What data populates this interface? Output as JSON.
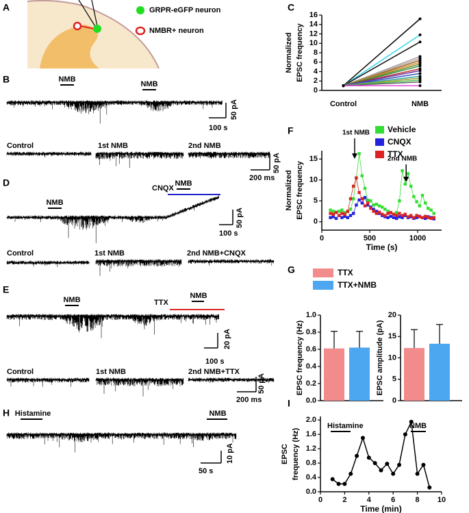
{
  "panels": {
    "A": {
      "label": "A",
      "items": [
        "GRPR-eGFP neuron",
        "NMBR+ neuron"
      ]
    },
    "B": {
      "label": "B",
      "events": [
        "NMB",
        "NMB"
      ],
      "scale": [
        "100 s",
        "50 pA"
      ],
      "sweeps": [
        "Control",
        "1st NMB",
        "2nd NMB"
      ],
      "sweep_scale": [
        "200 ms",
        "50 pA"
      ]
    },
    "D": {
      "label": "D",
      "events": [
        "NMB",
        "NMB",
        "CNQX"
      ],
      "scale": [
        "100 s",
        "50 pA"
      ],
      "sweeps": [
        "Control",
        "1st NMB",
        "2nd NMB+",
        "CNQX"
      ]
    },
    "E": {
      "label": "E",
      "events": [
        "NMB",
        "NMB",
        "TTX"
      ],
      "scale": [
        "100 s",
        "20 pA"
      ],
      "sweeps": [
        "Control",
        "1st NMB",
        "2nd NMB+",
        "TTX"
      ],
      "sweep_scale": [
        "200 ms",
        "50 pA"
      ]
    },
    "H": {
      "label": "H",
      "events": [
        "Histamine",
        "NMB"
      ],
      "scale": [
        "50 s",
        "10 pA"
      ]
    }
  },
  "chart_data": [
    {
      "panel": "C",
      "type": "line",
      "categories": [
        "Control",
        "NMB"
      ],
      "ylabel": [
        "Normalized",
        "EPSC frequency"
      ],
      "ylim": [
        0,
        16
      ],
      "yticks": [
        0,
        2,
        4,
        6,
        8,
        10,
        12,
        14,
        16
      ],
      "marker": "circle",
      "marker_color": "#000000",
      "series": [
        {
          "color": "#000000",
          "values": [
            1,
            15.2
          ]
        },
        {
          "color": "#33d6e8",
          "values": [
            1,
            11.8
          ]
        },
        {
          "color": "#111111",
          "values": [
            1,
            10.3
          ]
        },
        {
          "color": "#a0a0a0",
          "values": [
            1,
            7.2
          ]
        },
        {
          "color": "#c8a0a0",
          "values": [
            1,
            6.8
          ]
        },
        {
          "color": "#8c6c2c",
          "values": [
            1,
            6.4
          ]
        },
        {
          "color": "#e08a2a",
          "values": [
            1,
            6.0
          ]
        },
        {
          "color": "#6e8c2a",
          "values": [
            1,
            5.6
          ]
        },
        {
          "color": "#2a8c3c",
          "values": [
            1,
            5.2
          ]
        },
        {
          "color": "#c03030",
          "values": [
            1,
            4.6
          ]
        },
        {
          "color": "#7030a0",
          "values": [
            1,
            4.2
          ]
        },
        {
          "color": "#3050c0",
          "values": [
            1,
            3.6
          ]
        },
        {
          "color": "#30a0a0",
          "values": [
            1,
            3.0
          ]
        },
        {
          "color": "#a0a030",
          "values": [
            1,
            2.6
          ]
        },
        {
          "color": "#50c050",
          "values": [
            1,
            2.2
          ]
        },
        {
          "color": "#606060",
          "values": [
            1,
            1.8
          ]
        },
        {
          "color": "#e040e0",
          "values": [
            1,
            1.0
          ]
        }
      ]
    },
    {
      "panel": "F",
      "type": "line",
      "ylabel": [
        "Normalized",
        "EPSC frequency"
      ],
      "xlabel": "Time (s)",
      "annotations": [
        "1st NMB",
        "2nd NMB"
      ],
      "xlim": [
        0,
        1250
      ],
      "xticks": [
        0,
        500,
        1000
      ],
      "ylim": [
        -2,
        17
      ],
      "yticks": [
        0,
        5,
        10,
        15
      ],
      "marker": "square",
      "x": [
        90,
        120,
        150,
        180,
        210,
        240,
        270,
        300,
        330,
        360,
        390,
        420,
        450,
        480,
        510,
        540,
        570,
        600,
        630,
        660,
        690,
        720,
        750,
        780,
        810,
        840,
        870,
        900,
        930,
        960,
        990,
        1020,
        1050,
        1080,
        1110,
        1140,
        1170
      ],
      "series": [
        {
          "name": "Vehicle",
          "color": "#33dd33",
          "values": [
            2.8,
            2.5,
            2.3,
            2.5,
            2.8,
            2.2,
            2.4,
            3.0,
            5.5,
            10.5,
            16.3,
            11,
            8,
            5.2,
            5.0,
            4.0,
            4.2,
            3.8,
            3.5,
            3.0,
            2.5,
            2.2,
            1.8,
            2.2,
            5.0,
            12.2,
            9.0,
            11.5,
            8.5,
            6.0,
            4.8,
            3.8,
            6.3,
            4.5,
            3.2,
            2.8,
            2.0
          ]
        },
        {
          "name": "CNQX",
          "color": "#2222dd",
          "values": [
            1.0,
            1.2,
            0.8,
            1.5,
            1.0,
            1.3,
            1.0,
            1.5,
            2.0,
            4.0,
            5.2,
            4.5,
            5.8,
            4.0,
            3.5,
            3.0,
            2.5,
            2.0,
            1.5,
            1.2,
            1.0,
            1.3,
            1.0,
            0.8,
            1.2,
            1.0,
            1.5,
            1.0,
            1.2,
            0.8,
            1.0,
            1.3,
            1.0,
            0.8,
            1.2,
            1.0,
            0.7
          ]
        },
        {
          "name": "TTX",
          "color": "#dd2222",
          "values": [
            2.0,
            1.8,
            2.2,
            1.5,
            2.0,
            1.8,
            2.5,
            5.5,
            8.5,
            10.5,
            7.0,
            5.5,
            3.8,
            4.5,
            3.2,
            2.5,
            2.0,
            2.3,
            1.8,
            1.5,
            2.0,
            2.2,
            1.8,
            1.5,
            2.0,
            1.5,
            1.8,
            1.2,
            1.5,
            1.0,
            1.5,
            1.2,
            1.0,
            1.3,
            1.0,
            0.8,
            1.0
          ]
        }
      ]
    },
    {
      "panel": "G",
      "type": "bar",
      "ylabel": "EPSC frequency (Hz)",
      "ylim": [
        0,
        1
      ],
      "yticks": [
        {
          "value": 0,
          "label": "0.0"
        },
        0.2,
        0.4,
        0.6,
        0.8,
        {
          "value": 1,
          "label": "1.0"
        }
      ],
      "series": [
        {
          "name": "TTX",
          "color": "#f28b8b",
          "values": [
            0.61
          ],
          "errors": [
            0.2
          ]
        },
        {
          "name": "TTX+NMB",
          "color": "#4da6f0",
          "values": [
            0.62
          ],
          "errors": [
            0.19
          ]
        }
      ]
    },
    {
      "type": "bar",
      "ylabel": "EPSC amplitude (pA)",
      "ylim": [
        0,
        20
      ],
      "yticks": [
        0,
        5,
        10,
        15,
        20
      ],
      "series": [
        {
          "color": "#f28b8b",
          "values": [
            12.3
          ],
          "errors": [
            4.3
          ]
        },
        {
          "color": "#4da6f0",
          "values": [
            13.3
          ],
          "errors": [
            4.5
          ]
        }
      ]
    },
    {
      "panel": "I",
      "type": "line",
      "ylabel": [
        "EPSC",
        "frequency (Hz)"
      ],
      "xlabel": "Time (min)",
      "annotations": [
        "Histamine",
        "NMB"
      ],
      "marker": "circle",
      "marker_color": "#000000",
      "xlim": [
        0,
        10
      ],
      "xticks": [
        0,
        2,
        4,
        6,
        8,
        10
      ],
      "ylim": [
        0,
        2.1
      ],
      "yticks": [
        {
          "value": 0,
          "label": "0.0"
        },
        0.4,
        0.8,
        1.2,
        1.6,
        {
          "value": 2,
          "label": "2.0"
        }
      ],
      "x": [
        1,
        1.5,
        2,
        2.5,
        3,
        3.5,
        4,
        4.5,
        5,
        5.5,
        6,
        6.5,
        7,
        7.5,
        8,
        8.5,
        9
      ],
      "series": [
        {
          "color": "#000000",
          "values": [
            0.35,
            0.22,
            0.22,
            0.5,
            1.0,
            1.5,
            0.95,
            0.8,
            0.6,
            0.78,
            0.5,
            0.75,
            1.6,
            1.95,
            0.5,
            0.75,
            0.12
          ]
        }
      ]
    }
  ]
}
